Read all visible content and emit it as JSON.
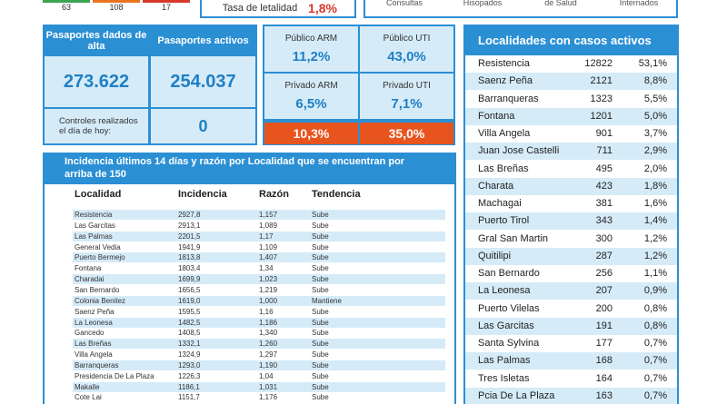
{
  "top": {
    "counts": [
      "63",
      "108",
      "17"
    ],
    "lethality_label": "Tasa de letalidad",
    "lethality_value": "1,8%",
    "labels": [
      "Consultas",
      "Hisopados",
      "de Salud",
      "Internados"
    ]
  },
  "passports": {
    "discharged_label": "Pasaportes dados de alta",
    "discharged_value": "273.622",
    "active_label": "Pasaportes activos",
    "active_value": "254.037",
    "controls_label": "Controles realizados el día de hoy:",
    "controls_value": "0"
  },
  "beds": {
    "cells": [
      {
        "label": "Público ARM",
        "value": "11,2%"
      },
      {
        "label": "Público UTI",
        "value": "43,0%"
      },
      {
        "label": "Privado ARM",
        "value": "6,5%"
      },
      {
        "label": "Privado UTI",
        "value": "7,1%"
      }
    ],
    "totals": [
      "10,3%",
      "35,0%"
    ]
  },
  "incidence": {
    "title": "Incidencia últimos 14 días y razón por Localidad que se encuentran por arriba de 150",
    "header": [
      "Localidad",
      "Incidencia",
      "Razón",
      "Tendencia"
    ],
    "rows": [
      [
        "Resistencia",
        "2927,8",
        "1,157",
        "Sube"
      ],
      [
        "Las Garcitas",
        "2913,1",
        "1,089",
        "Sube"
      ],
      [
        "Las Palmas",
        "2201,5",
        "1,17",
        "Sube"
      ],
      [
        "General Vedia",
        "1941,9",
        "1,109",
        "Sube"
      ],
      [
        "Puerto Bermejo",
        "1813,8",
        "1,407",
        "Sube"
      ],
      [
        "Fontana",
        "1803,4",
        "1,34",
        "Sube"
      ],
      [
        "Charadai",
        "1699,9",
        "1,023",
        "Sube"
      ],
      [
        "San Bernardo",
        "1656,5",
        "1,219",
        "Sube"
      ],
      [
        "Colonia Benitez",
        "1619,0",
        "1,000",
        "Mantiene"
      ],
      [
        "Saenz Peña",
        "1595,5",
        "1,16",
        "Sube"
      ],
      [
        "La Leonesa",
        "1482,5",
        "1,186",
        "Sube"
      ],
      [
        "Gancedo",
        "1408,5",
        "1,340",
        "Sube"
      ],
      [
        "Las Breñas",
        "1332,1",
        "1,260",
        "Sube"
      ],
      [
        "Villa Angela",
        "1324,9",
        "1,297",
        "Sube"
      ],
      [
        "Barranqueras",
        "1293,0",
        "1,190",
        "Sube"
      ],
      [
        "Presidencia De La Plaza",
        "1226,3",
        "1,04",
        "Sube"
      ],
      [
        "Makalle",
        "1186,1",
        "1,031",
        "Sube"
      ],
      [
        "Cote Lai",
        "1151,7",
        "1,176",
        "Sube"
      ]
    ]
  },
  "active": {
    "title": "Localidades con casos activos",
    "rows": [
      [
        "Resistencia",
        "12822",
        "53,1%"
      ],
      [
        "Saenz Peña",
        "2121",
        "8,8%"
      ],
      [
        "Barranqueras",
        "1323",
        "5,5%"
      ],
      [
        "Fontana",
        "1201",
        "5,0%"
      ],
      [
        "Villa Angela",
        "901",
        "3,7%"
      ],
      [
        "Juan Jose Castelli",
        "711",
        "2,9%"
      ],
      [
        "Las Breñas",
        "495",
        "2,0%"
      ],
      [
        "Charata",
        "423",
        "1,8%"
      ],
      [
        "Machagai",
        "381",
        "1,6%"
      ],
      [
        "Puerto Tirol",
        "343",
        "1,4%"
      ],
      [
        "Gral San Martin",
        "300",
        "1,2%"
      ],
      [
        "Quitilipi",
        "287",
        "1,2%"
      ],
      [
        "San Bernardo",
        "256",
        "1,1%"
      ],
      [
        "La Leonesa",
        "207",
        "0,9%"
      ],
      [
        "Puerto Vilelas",
        "200",
        "0,8%"
      ],
      [
        "Las Garcitas",
        "191",
        "0,8%"
      ],
      [
        "Santa Sylvina",
        "177",
        "0,7%"
      ],
      [
        "Las Palmas",
        "168",
        "0,7%"
      ],
      [
        "Tres Isletas",
        "164",
        "0,7%"
      ],
      [
        "Pcia De La Plaza",
        "163",
        "0,7%"
      ]
    ]
  }
}
